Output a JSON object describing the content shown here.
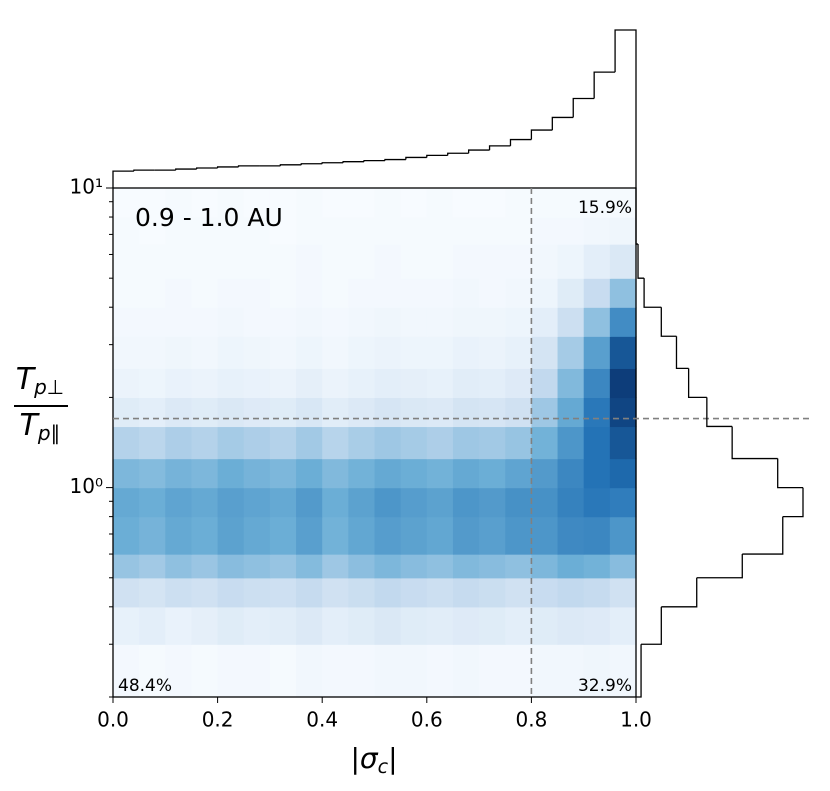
{
  "chart_data": {
    "type": "heatmap",
    "region_label": "0.9 - 1.0 AU",
    "quadrant_labels": {
      "top_right": "15.9%",
      "bottom_left": "48.4%",
      "bottom_right": "32.9%"
    },
    "xlabel": {
      "open": "|",
      "symbol": "σ",
      "subscript": "c",
      "close": "|"
    },
    "ylabel": {
      "numerator": {
        "symbol": "T",
        "subscript": "p⊥"
      },
      "denominator": {
        "symbol": "T",
        "subscript": "p∥"
      }
    },
    "xlim": [
      0,
      1
    ],
    "xticks": [
      {
        "value": 0,
        "label": "0.0"
      },
      0.2,
      0.4,
      0.6,
      0.8,
      {
        "value": 1,
        "label": "1.0"
      }
    ],
    "ylim": [
      0.2,
      10
    ],
    "log_y": true,
    "yticks": [
      {
        "value": 1,
        "label": "10⁰"
      },
      {
        "value": 10,
        "label": "10¹"
      }
    ],
    "yminor_ticks": [
      0.2,
      0.3,
      0.4,
      0.5,
      0.6,
      0.7,
      0.8,
      0.9,
      2,
      3,
      4,
      5,
      6,
      7,
      8,
      9
    ],
    "x_threshold": 0.8,
    "y_threshold": 1.7,
    "threshold_color": "#808080",
    "hist_color": "#000000",
    "colormap": [
      "#f7fbff",
      "#c6dbef",
      "#6baed6",
      "#2171b5",
      "#08306b"
    ],
    "xbins": [
      0,
      0.05,
      0.1,
      0.15,
      0.2,
      0.25,
      0.3,
      0.35,
      0.4,
      0.45,
      0.5,
      0.55,
      0.6,
      0.65,
      0.7,
      0.75,
      0.8,
      0.85,
      0.9,
      0.95,
      1
    ],
    "ybins": [
      0.2,
      0.3,
      0.4,
      0.5,
      0.6,
      0.8,
      1.0,
      1.25,
      1.6,
      2,
      2.5,
      3.2,
      4,
      5,
      6.5,
      8,
      10
    ],
    "z": [
      [
        0.02,
        0.01,
        0.02,
        0.01,
        0.02,
        0.02,
        0.01,
        0.03,
        0.02,
        0.02,
        0.03,
        0.03,
        0.02,
        0.03,
        0.02,
        0.02,
        0.03,
        0.03,
        0.04,
        0.03
      ],
      [
        0.08,
        0.1,
        0.07,
        0.09,
        0.12,
        0.1,
        0.11,
        0.14,
        0.1,
        0.12,
        0.15,
        0.12,
        0.11,
        0.13,
        0.12,
        0.1,
        0.12,
        0.14,
        0.13,
        0.1
      ],
      [
        0.2,
        0.18,
        0.22,
        0.2,
        0.24,
        0.22,
        0.21,
        0.25,
        0.2,
        0.23,
        0.26,
        0.24,
        0.22,
        0.25,
        0.23,
        0.2,
        0.24,
        0.26,
        0.25,
        0.2
      ],
      [
        0.38,
        0.35,
        0.4,
        0.37,
        0.42,
        0.4,
        0.38,
        0.43,
        0.36,
        0.41,
        0.45,
        0.42,
        0.4,
        0.44,
        0.42,
        0.4,
        0.45,
        0.5,
        0.48,
        0.42
      ],
      [
        0.5,
        0.47,
        0.52,
        0.5,
        0.55,
        0.52,
        0.5,
        0.56,
        0.48,
        0.53,
        0.57,
        0.55,
        0.53,
        0.58,
        0.56,
        0.6,
        0.6,
        0.65,
        0.66,
        0.6
      ],
      [
        0.52,
        0.5,
        0.54,
        0.52,
        0.56,
        0.54,
        0.52,
        0.58,
        0.5,
        0.55,
        0.6,
        0.57,
        0.55,
        0.6,
        0.58,
        0.62,
        0.62,
        0.68,
        0.72,
        0.7
      ],
      [
        0.45,
        0.43,
        0.47,
        0.45,
        0.5,
        0.47,
        0.45,
        0.5,
        0.44,
        0.48,
        0.52,
        0.5,
        0.48,
        0.52,
        0.5,
        0.54,
        0.58,
        0.66,
        0.74,
        0.78
      ],
      [
        0.3,
        0.28,
        0.32,
        0.3,
        0.34,
        0.32,
        0.3,
        0.35,
        0.29,
        0.33,
        0.36,
        0.34,
        0.32,
        0.36,
        0.35,
        0.38,
        0.48,
        0.6,
        0.74,
        0.85
      ],
      [
        0.12,
        0.1,
        0.14,
        0.12,
        0.15,
        0.13,
        0.12,
        0.16,
        0.11,
        0.14,
        0.17,
        0.15,
        0.14,
        0.18,
        0.17,
        0.2,
        0.36,
        0.52,
        0.72,
        0.92
      ],
      [
        0.06,
        0.05,
        0.07,
        0.06,
        0.08,
        0.07,
        0.06,
        0.09,
        0.06,
        0.08,
        0.1,
        0.09,
        0.08,
        0.11,
        0.1,
        0.13,
        0.26,
        0.44,
        0.66,
        0.95
      ],
      [
        0.03,
        0.03,
        0.04,
        0.03,
        0.05,
        0.04,
        0.03,
        0.05,
        0.03,
        0.05,
        0.06,
        0.05,
        0.05,
        0.07,
        0.06,
        0.08,
        0.18,
        0.34,
        0.56,
        0.85
      ],
      [
        0.02,
        0.02,
        0.02,
        0.02,
        0.03,
        0.02,
        0.02,
        0.03,
        0.02,
        0.03,
        0.04,
        0.03,
        0.03,
        0.04,
        0.04,
        0.05,
        0.1,
        0.22,
        0.4,
        0.64
      ],
      [
        0.01,
        0.01,
        0.02,
        0.01,
        0.02,
        0.02,
        0.01,
        0.02,
        0.01,
        0.02,
        0.02,
        0.02,
        0.02,
        0.03,
        0.02,
        0.03,
        0.05,
        0.12,
        0.24,
        0.4
      ],
      [
        0.01,
        0.01,
        0.01,
        0.01,
        0.01,
        0.01,
        0.01,
        0.02,
        0.01,
        0.01,
        0.02,
        0.01,
        0.01,
        0.02,
        0.02,
        0.02,
        0.03,
        0.05,
        0.1,
        0.15
      ],
      [
        0.01,
        0,
        0.01,
        0.01,
        0.01,
        0.01,
        0,
        0.01,
        0.01,
        0.01,
        0.01,
        0.01,
        0.01,
        0.01,
        0.01,
        0.01,
        0.02,
        0.02,
        0.03,
        0.04
      ],
      [
        0,
        0,
        0.01,
        0,
        0.01,
        0,
        0,
        0.01,
        0,
        0,
        0.01,
        0,
        0.01,
        0,
        0,
        0.01,
        0.01,
        0.01,
        0.01,
        0.01
      ]
    ],
    "top_hist": {
      "bins": [
        0,
        0.04,
        0.08,
        0.12,
        0.16,
        0.2,
        0.24,
        0.28,
        0.32,
        0.36,
        0.4,
        0.44,
        0.48,
        0.52,
        0.56,
        0.6,
        0.64,
        0.68,
        0.72,
        0.76,
        0.8,
        0.84,
        0.88,
        0.92,
        0.96,
        1
      ],
      "counts": [
        16,
        17,
        17,
        18,
        19,
        20,
        21,
        21,
        22,
        23,
        24,
        25,
        26,
        27,
        29,
        31,
        33,
        36,
        40,
        46,
        55,
        67,
        85,
        110,
        150
      ]
    },
    "right_hist": {
      "bins": [
        0.2,
        0.3,
        0.4,
        0.5,
        0.6,
        0.8,
        1.0,
        1.25,
        1.6,
        2,
        2.5,
        3.2,
        4,
        5,
        6.5,
        8,
        10
      ],
      "counts": [
        5,
        25,
        60,
        105,
        145,
        165,
        140,
        95,
        70,
        52,
        40,
        25,
        8,
        2,
        0,
        0
      ]
    }
  }
}
